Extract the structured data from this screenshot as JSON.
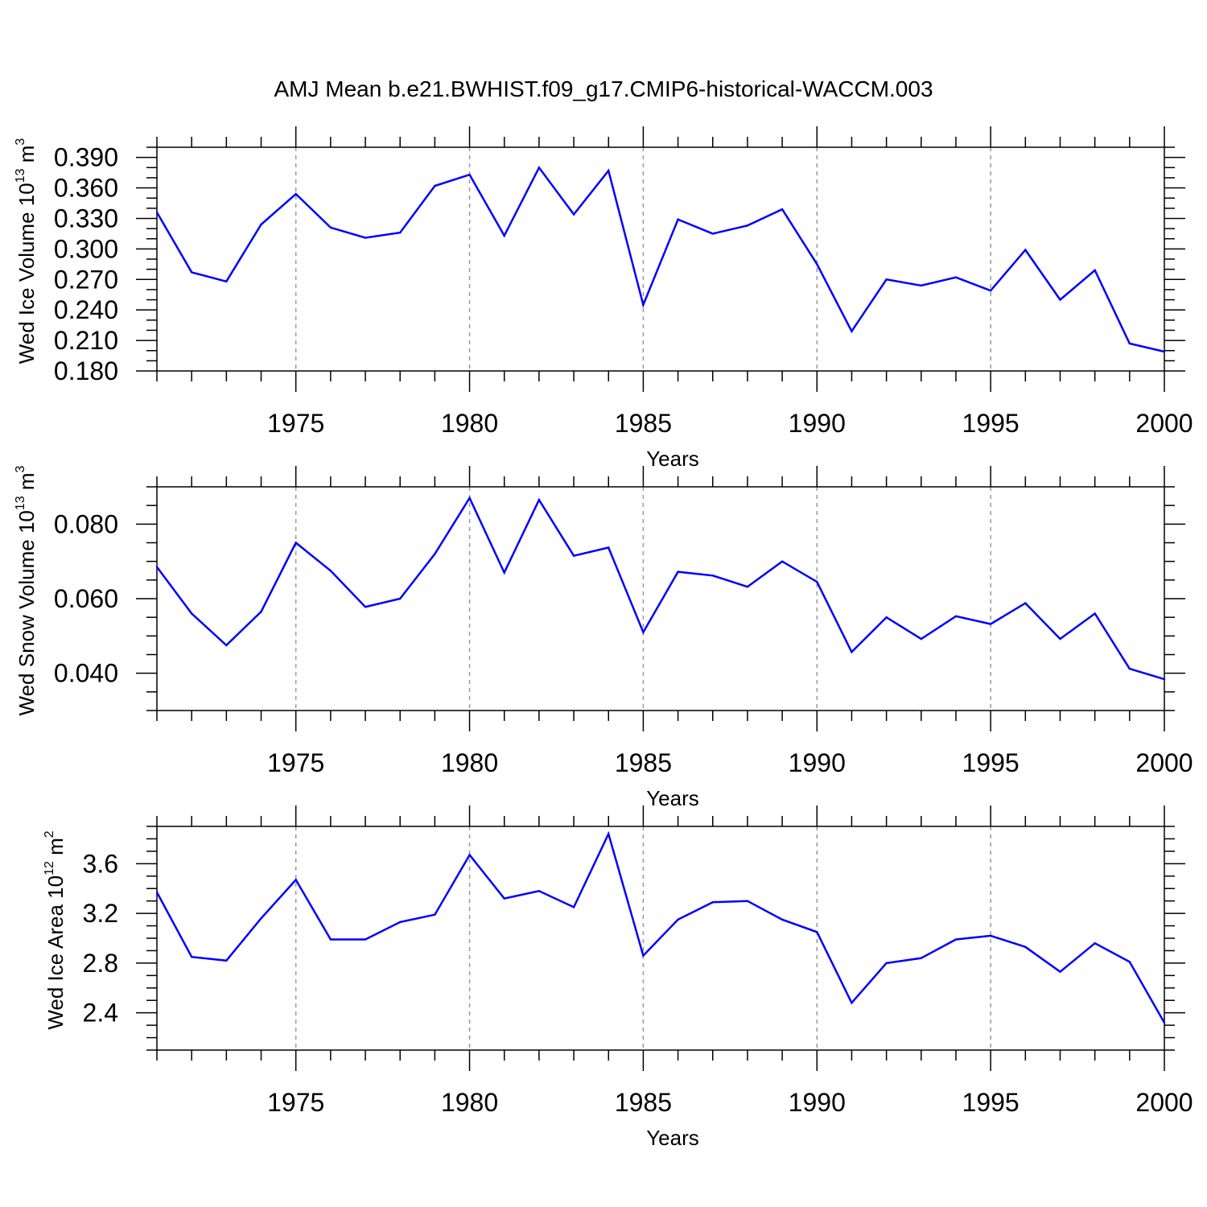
{
  "figure": {
    "title": "AMJ Mean b.e21.BWHIST.f09_g17.CMIP6-historical-WACCM.003"
  },
  "chart_data": [
    {
      "type": "line",
      "xlabel": "Years",
      "ylabel_main": "Wed Ice Volume 10",
      "ylabel_exp": "13",
      "ylabel_unit": "m",
      "ylabel_unit_exp": "3",
      "xlim": [
        1971,
        2000
      ],
      "ylim": [
        0.18,
        0.4
      ],
      "x_ticks": [
        1975,
        1980,
        1985,
        1990,
        1995,
        2000
      ],
      "y_ticks": [
        0.18,
        0.21,
        0.24,
        0.27,
        0.3,
        0.33,
        0.36,
        0.39
      ],
      "y_tick_labels": [
        "0.180",
        "0.210",
        "0.240",
        "0.270",
        "0.300",
        "0.330",
        "0.360",
        "0.390"
      ],
      "y_minor_step": 0.01,
      "grid": "vertical dashed at major x ticks",
      "line_color": "#0000ff",
      "x": [
        1971,
        1972,
        1973,
        1974,
        1975,
        1976,
        1977,
        1978,
        1979,
        1980,
        1981,
        1982,
        1983,
        1984,
        1985,
        1986,
        1987,
        1988,
        1989,
        1990,
        1991,
        1992,
        1993,
        1994,
        1995,
        1996,
        1997,
        1998,
        1999,
        2000
      ],
      "y": [
        0.336,
        0.277,
        0.268,
        0.324,
        0.354,
        0.321,
        0.311,
        0.316,
        0.362,
        0.373,
        0.313,
        0.38,
        0.334,
        0.377,
        0.245,
        0.329,
        0.315,
        0.323,
        0.339,
        0.285,
        0.219,
        0.27,
        0.264,
        0.272,
        0.259,
        0.299,
        0.25,
        0.279,
        0.207,
        0.199
      ]
    },
    {
      "type": "line",
      "xlabel": "Years",
      "ylabel_main": "Wed Snow Volume 10",
      "ylabel_exp": "13",
      "ylabel_unit": "m",
      "ylabel_unit_exp": "3",
      "xlim": [
        1971,
        2000
      ],
      "ylim": [
        0.03,
        0.09
      ],
      "x_ticks": [
        1975,
        1980,
        1985,
        1990,
        1995,
        2000
      ],
      "y_ticks": [
        0.04,
        0.06,
        0.08
      ],
      "y_tick_labels": [
        "0.040",
        "0.060",
        "0.080"
      ],
      "y_minor_step": 0.005,
      "grid": "vertical dashed at major x ticks",
      "line_color": "#0000ff",
      "x": [
        1971,
        1972,
        1973,
        1974,
        1975,
        1976,
        1977,
        1978,
        1979,
        1980,
        1981,
        1982,
        1983,
        1984,
        1985,
        1986,
        1987,
        1988,
        1989,
        1990,
        1991,
        1992,
        1993,
        1994,
        1995,
        1996,
        1997,
        1998,
        1999,
        2000
      ],
      "y": [
        0.0685,
        0.056,
        0.0475,
        0.0565,
        0.075,
        0.0675,
        0.0578,
        0.06,
        0.072,
        0.087,
        0.067,
        0.0865,
        0.0715,
        0.0737,
        0.051,
        0.0672,
        0.0662,
        0.0632,
        0.07,
        0.0645,
        0.0457,
        0.055,
        0.0492,
        0.0553,
        0.0532,
        0.0588,
        0.0492,
        0.056,
        0.0412,
        0.0384
      ]
    },
    {
      "type": "line",
      "xlabel": "Years",
      "ylabel_main": "Wed Ice Area 10",
      "ylabel_exp": "12",
      "ylabel_unit": "m",
      "ylabel_unit_exp": "2",
      "xlim": [
        1971,
        2000
      ],
      "ylim": [
        2.1,
        3.9
      ],
      "x_ticks": [
        1975,
        1980,
        1985,
        1990,
        1995,
        2000
      ],
      "y_ticks": [
        2.4,
        2.8,
        3.2,
        3.6
      ],
      "y_tick_labels": [
        "2.4",
        "2.8",
        "3.2",
        "3.6"
      ],
      "y_minor_step": 0.1,
      "grid": "vertical dashed at major x ticks",
      "line_color": "#0000ff",
      "x": [
        1971,
        1972,
        1973,
        1974,
        1975,
        1976,
        1977,
        1978,
        1979,
        1980,
        1981,
        1982,
        1983,
        1984,
        1985,
        1986,
        1987,
        1988,
        1989,
        1990,
        1991,
        1992,
        1993,
        1994,
        1995,
        1996,
        1997,
        1998,
        1999,
        2000
      ],
      "y": [
        3.37,
        2.85,
        2.82,
        3.16,
        3.47,
        2.99,
        2.99,
        3.13,
        3.19,
        3.67,
        3.32,
        3.38,
        3.25,
        3.84,
        2.86,
        3.15,
        3.29,
        3.3,
        3.15,
        3.05,
        2.48,
        2.8,
        2.84,
        2.99,
        3.02,
        2.93,
        2.73,
        2.96,
        2.81,
        2.32
      ]
    }
  ]
}
